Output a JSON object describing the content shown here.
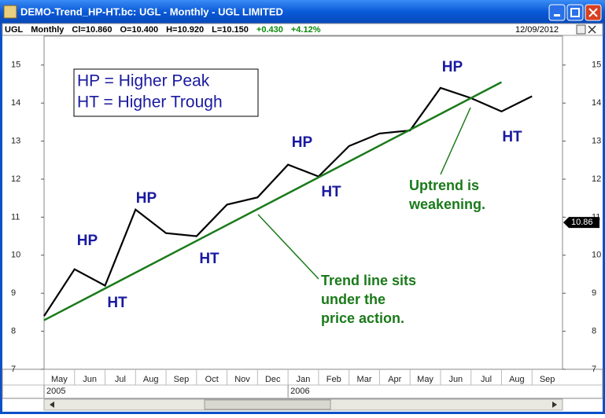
{
  "window": {
    "title": "DEMO-Trend_HP-HT.bc: UGL - Monthly - UGL LIMITED",
    "info": [
      "UGL",
      "Monthly",
      "Cl=10.860",
      "O=10.400",
      "H=10.920",
      "L=10.150"
    ],
    "change": [
      "+0.430",
      "+4.12%"
    ],
    "date": "12/09/2012"
  },
  "chart_data": {
    "type": "line",
    "categories": [
      "May",
      "Jun",
      "Jul",
      "Aug",
      "Sep",
      "Oct",
      "Nov",
      "Dec",
      "Jan",
      "Feb",
      "Mar",
      "Apr",
      "May",
      "Jun",
      "Jul",
      "Aug",
      "Sep"
    ],
    "years": [
      {
        "index": 0,
        "label": "2005"
      },
      {
        "index": 8,
        "label": "2006"
      }
    ],
    "series": [
      {
        "name": "UGL",
        "color": "#000000",
        "values": [
          8.4,
          9.63,
          9.2,
          11.2,
          10.58,
          10.5,
          11.33,
          11.52,
          12.38,
          12.07,
          12.87,
          13.2,
          13.28,
          14.4,
          14.13,
          13.78,
          14.18
        ]
      }
    ],
    "trend": {
      "x": [
        0,
        15
      ],
      "values": [
        8.29,
        14.55
      ],
      "color": "#1a7a1a"
    },
    "ylim": [
      7,
      15.76
    ],
    "yticks": [
      7,
      8,
      9,
      10,
      11,
      12,
      13,
      14,
      15
    ],
    "last_value": 10.86,
    "legend_box": [
      "HP = Higher Peak",
      "HT = Higher Trough"
    ],
    "annotations": [
      "HP",
      "HP",
      "HP",
      "HP",
      "HT",
      "HT",
      "HT",
      "HT"
    ],
    "callouts": [
      [
        "Uptrend is",
        "weakening."
      ],
      [
        "Trend line sits",
        "under the",
        "price action."
      ]
    ]
  }
}
